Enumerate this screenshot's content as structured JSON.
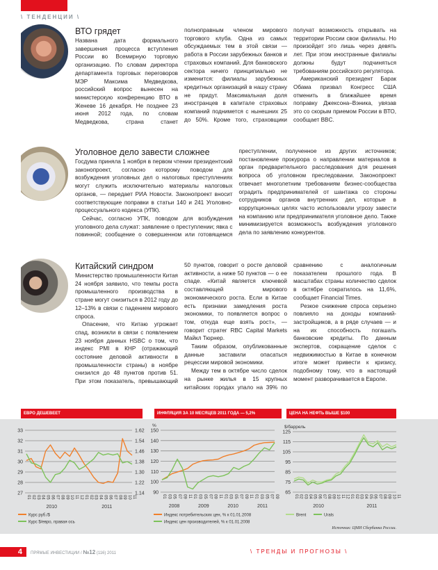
{
  "header": {
    "rubric": "\\ ТЕНДЕНЦИИ \\"
  },
  "articles": [
    {
      "title": "ВТО грядет",
      "paragraphs": [
        "Названа дата формального завершения процесса вступления России во Всемирную торговую организацию. По словам директора департамента торговых переговоров МЭР Максима Медведкова, российский вопрос вынесен на министерскую конференцию ВТО в Женеве 16 декабря. Не позднее 23 июня 2012 года, по словам Медведкова, страна станет полноправным членом мирового торгового клуба. Одна из самых обсуждаемых тем в этой связи — работа в России зарубежных банков и страховых компаний. Для банковского сектора ничего принципиально не изменится: филиалы зарубежных кредитных организаций в нашу страну не придут. Максимальная доля иностранцев в капитале страховых компаний поднимется с нынешних 25 до 50%. Кроме того, страховщики получат возможность открывать на территории России свои филиалы. Но произойдет это лишь через девять лет. При этом иностранные филиалы должны будут подчиняться требованиям российского регулятора.",
        "Американский президент Барак Обама призвал Конгресс США отменить в ближайшее время поправку Джексона–Вэника, увязав это со скорым приемом России в ВТО, сообщает BBC."
      ]
    },
    {
      "title": "Уголовное дело завести сложнее",
      "paragraphs": [
        "Госдума приняла 1 ноября в первом чтении президентский законопроект, согласно которому поводом для возбуждения уголовных дел о налоговых преступлениях могут служить исключительно материалы налоговых органов, — передает РИА Новости. Законопроект вносит соответствующие поправки в статьи 140 и 241 Уголовно-процессуального кодекса (УПК).",
        "Сейчас, согласно УПК, поводом для возбуждения уголовного дела служат: заявление о преступлении; явка с повинной; сообщение о совершенном или готовящемся преступлении, полученное из других источников; постановление прокурора о направлении материалов в орган предварительного расследования для решения вопроса об уголовном преследовании. Законопроект отвечает многолетним требованиям бизнес-сообщества оградить предпринимателей от шантажа со стороны сотрудников органов внутренних дел, которые в коррупционных целях часто использовали угрозу завести на компанию или предпринимателя уголовное дело. Также минимизируется возможность возбуждения уголовного дела по заявлению конкурентов."
      ]
    },
    {
      "title": "Китайский синдром",
      "paragraphs": [
        "Министерство промышленности Китая 24 ноября заявило, что темпы роста промышленного производства в стране могут снизиться в 2012 году до 12–13% в связи с падением мирового спроса.",
        "Опасение, что Китаю угрожает спад, возникли в связи с появлением 23 ноября данных HSBC о том, что индекс PMI в КНР (отражающий состояние деловой активности в промышленности страны) в ноябре снизился до 48 пунктов против 51. При этом показатель, превышающий 50 пунктов, говорит о росте деловой активности, а ниже 50 пунктов — о ее спаде. «Китай является ключевой составляющей мирового экономического роста. Если в Китае есть признаки замедления роста экономики, то появляется вопрос о том, откуда еще взять рост», — говорит стратег RBC Capital Markets Майкл Тюрнер.",
        "Таким образом, опубликованные данные заставили опасаться рецессии мировой экономики.",
        "Между тем в октябре число сделок на рынке жилья в 15 крупных китайских городах упало на 39% по сравнению с аналогичным показателем прошлого года. В масштабах страны количество сделок в октябре сократилось на 11,6%, сообщает Financial Times.",
        "Резкое снижение спроса серьезно повлияло на доходы компаний-застройщиков, а в ряде случаев — и на их способность погашать банковские кредиты. По данным экспертов, сокращение сделок с недвижимостью в Китае в конечном итоге может привести к кризису, подобному тому, что в настоящий момент разворачивается в Европе."
      ]
    }
  ],
  "chart_data": [
    {
      "type": "line",
      "title": "ЕВРО ДЕШЕВЕЕТ",
      "x_ticks": [
        "01",
        "02",
        "03",
        "04",
        "05",
        "06",
        "07",
        "08",
        "09",
        "10",
        "11",
        "12",
        "01",
        "02",
        "03",
        "04",
        "05",
        "06",
        "07",
        "08",
        "09",
        "10",
        "11"
      ],
      "years": [
        "2010",
        "2011"
      ],
      "ylim": [
        27,
        33
      ],
      "y_ticks": [
        27,
        28,
        29,
        30,
        31,
        32,
        33
      ],
      "y2lim": [
        1.14,
        1.62
      ],
      "y2_ticks": [
        "1.14",
        "1.22",
        "1.30",
        "1.38",
        "1.46",
        "1.54",
        "1.62"
      ],
      "grid": true,
      "series": [
        {
          "name": "Курс руб./$",
          "axis": "left",
          "color": "#f07f2a",
          "values": [
            30.1,
            30.3,
            29.5,
            29.3,
            31.0,
            31.6,
            30.8,
            30.3,
            30.9,
            30.5,
            31.3,
            30.6,
            29.8,
            29.2,
            28.5,
            28.0,
            27.9,
            28.1,
            28.0,
            28.9,
            32.2,
            31.0,
            30.6
          ]
        },
        {
          "name": "Курс $/евро, правая ось",
          "axis": "right",
          "color": "#7dc25a",
          "values": [
            1.44,
            1.37,
            1.36,
            1.34,
            1.26,
            1.22,
            1.28,
            1.29,
            1.33,
            1.39,
            1.37,
            1.32,
            1.34,
            1.37,
            1.4,
            1.45,
            1.43,
            1.44,
            1.43,
            1.44,
            1.37,
            1.38,
            1.36
          ]
        }
      ]
    },
    {
      "type": "line",
      "title": "ИНФЛЯЦИЯ ЗА 10 МЕСЯЦЕВ 2011 ГОДА — 5,2%",
      "ylabel": "%",
      "x_ticks": [
        "01",
        "03",
        "05",
        "07",
        "09",
        "11",
        "01",
        "03",
        "05",
        "07",
        "09",
        "11",
        "01",
        "03",
        "05",
        "07",
        "09",
        "11",
        "01",
        "03",
        "05",
        "07",
        "09"
      ],
      "years": [
        "2008",
        "2009",
        "2010",
        "2011"
      ],
      "ylim": [
        90,
        150
      ],
      "y_ticks": [
        90,
        100,
        110,
        120,
        130,
        140,
        150
      ],
      "grid": true,
      "series": [
        {
          "name": "Индекс потребительских цен, % к 01.01.2008",
          "color": "#f07f2a",
          "values": [
            102,
            105,
            108,
            109.5,
            111,
            113,
            117,
            119,
            120.5,
            121,
            121.3,
            122,
            124.5,
            126,
            127,
            128.5,
            130,
            132,
            135.5,
            137,
            138,
            138.2,
            138.5
          ]
        },
        {
          "name": "Индекс цен производителей, % к 01.01.2008",
          "color": "#7dc25a",
          "values": [
            102,
            104,
            112,
            122,
            113,
            95,
            93,
            99,
            102,
            105,
            106,
            105,
            106,
            108,
            114,
            112,
            115,
            117,
            122,
            128,
            133,
            131,
            138
          ]
        }
      ]
    },
    {
      "type": "line",
      "title": "ЦЕНА НА НЕФТЬ ВЫШЕ $100",
      "ylabel": "$/баррель",
      "x_ticks": [
        "01",
        "02",
        "03",
        "04",
        "05",
        "06",
        "07",
        "08",
        "09",
        "10",
        "11",
        "12",
        "01",
        "02",
        "03",
        "04",
        "05",
        "06",
        "07",
        "08",
        "09",
        "10",
        "11"
      ],
      "years": [
        "2010",
        "2011"
      ],
      "ylim": [
        65,
        125
      ],
      "y_ticks": [
        65,
        75,
        85,
        95,
        105,
        115,
        125
      ],
      "grid": true,
      "series": [
        {
          "name": "Brent",
          "color": "#b3dc8c",
          "values": [
            78,
            80,
            79,
            74,
            77,
            75,
            75,
            77,
            78,
            83,
            85,
            91,
            96,
            104,
            113,
            122,
            114,
            113,
            116,
            110,
            113,
            110,
            112
          ]
        },
        {
          "name": "Urals",
          "color": "#7dc25a",
          "values": [
            76,
            78,
            77,
            72,
            75,
            73,
            74,
            76,
            77,
            81,
            83,
            89,
            94,
            102,
            111,
            119,
            112,
            110,
            114,
            107,
            110,
            108,
            110
          ]
        }
      ]
    }
  ],
  "source": "Источник: ЦМИ Сбербанка России.",
  "footer": {
    "page_number": "4",
    "magazine": "ПРЯМЫЕ ИНВЕСТИЦИИ /",
    "issue": "№12",
    "issue_extra": "(116) 2011",
    "section": "\\ ТРЕНДЫ И ПРОГНОЗЫ \\"
  }
}
